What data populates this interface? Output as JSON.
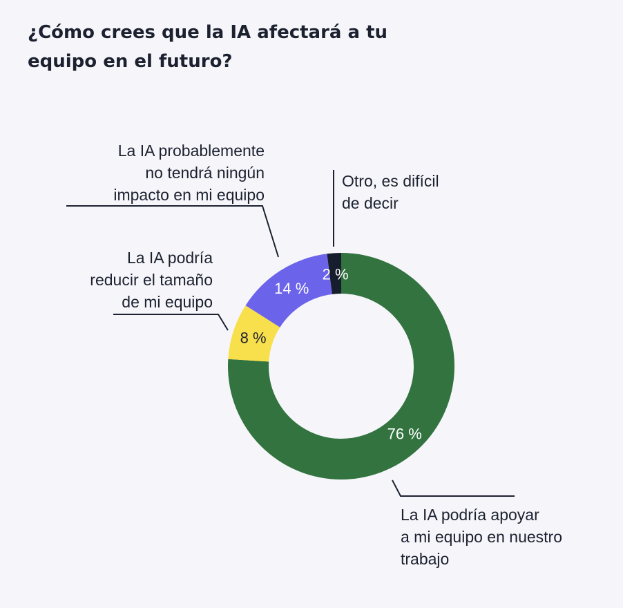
{
  "chart_data": {
    "type": "pie",
    "title": "¿Cómo crees que la IA afectará a tu equipo en el futuro?",
    "style": "donut",
    "series": [
      {
        "name": "Respuestas",
        "slices": [
          {
            "key": "apoyar",
            "label_lines": [
              "La IA podría apoyar",
              "a mi equipo en nuestro",
              "trabajo"
            ],
            "value": 76,
            "value_label": "76 %",
            "color": "#32733f",
            "text_color": "#ffffff"
          },
          {
            "key": "reducir",
            "label_lines": [
              "La IA podría",
              "reducir el tamaño",
              "de mi equipo"
            ],
            "value": 8,
            "value_label": "8 %",
            "color": "#f8df4c",
            "text_color": "#1c2130"
          },
          {
            "key": "sin-impacto",
            "label_lines": [
              "La IA probablemente",
              "no tendrá ningún",
              "impacto en mi equipo"
            ],
            "value": 14,
            "value_label": "14 %",
            "color": "#6c63eb",
            "text_color": "#ffffff"
          },
          {
            "key": "otro",
            "label_lines": [
              "Otro, es difícil",
              "de decir"
            ],
            "value": 2,
            "value_label": "2 %",
            "color": "#161d2d",
            "text_color": "#ffffff"
          }
        ]
      }
    ],
    "direction": "clockwise",
    "start_angle": "top",
    "background": "#f6f6fa"
  }
}
